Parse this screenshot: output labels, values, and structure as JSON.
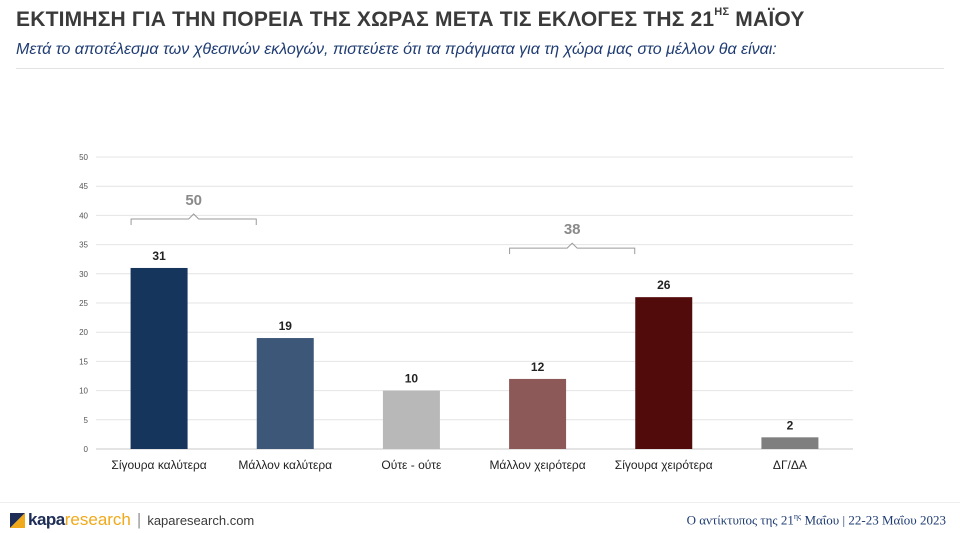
{
  "header": {
    "title_main": "ΕΚΤΙΜΗΣΗ ΓΙΑ ΤΗΝ ΠΟΡΕΙΑ ΤΗΣ ΧΩΡΑΣ ΜΕΤΑ ΤΙΣ ΕΚΛΟΓΕΣ ΤΗΣ 21",
    "title_sup": "ΗΣ",
    "title_end": " ΜΑΪΟΥ",
    "subtitle": "Μετά το αποτέλεσμα των χθεσινών εκλογών, πιστεύετε ότι τα πράγματα για τη χώρα μας στο μέλλον θα είναι:"
  },
  "chart_data": {
    "type": "bar",
    "categories": [
      "Σίγουρα καλύτερα",
      "Μάλλον καλύτερα",
      "Ούτε - ούτε",
      "Μάλλον χειρότερα",
      "Σίγουρα χειρότερα",
      "ΔΓ/ΔΑ"
    ],
    "values": [
      31,
      19,
      10,
      12,
      26,
      2
    ],
    "colors": [
      "#15355c",
      "#3d5778",
      "#b8b8b8",
      "#8c5858",
      "#520b0b",
      "#7f7f7f"
    ],
    "ylim": [
      0,
      50
    ],
    "yticks": [
      0,
      5,
      10,
      15,
      20,
      25,
      30,
      35,
      40,
      45,
      50
    ],
    "grid": true,
    "brackets": [
      {
        "label": "50",
        "from": 0,
        "to": 1
      },
      {
        "label": "38",
        "from": 3,
        "to": 4
      }
    ]
  },
  "footer": {
    "logo_bold": "kapa",
    "logo_light": "research",
    "separator": "|",
    "url": "kaparesearch.com",
    "right_prefix": "Ο αντίκτυπος της 21",
    "right_sup": "ης",
    "right_mid": " Μαΐου | ",
    "right_date": "22-23 Μαΐου 2023"
  }
}
